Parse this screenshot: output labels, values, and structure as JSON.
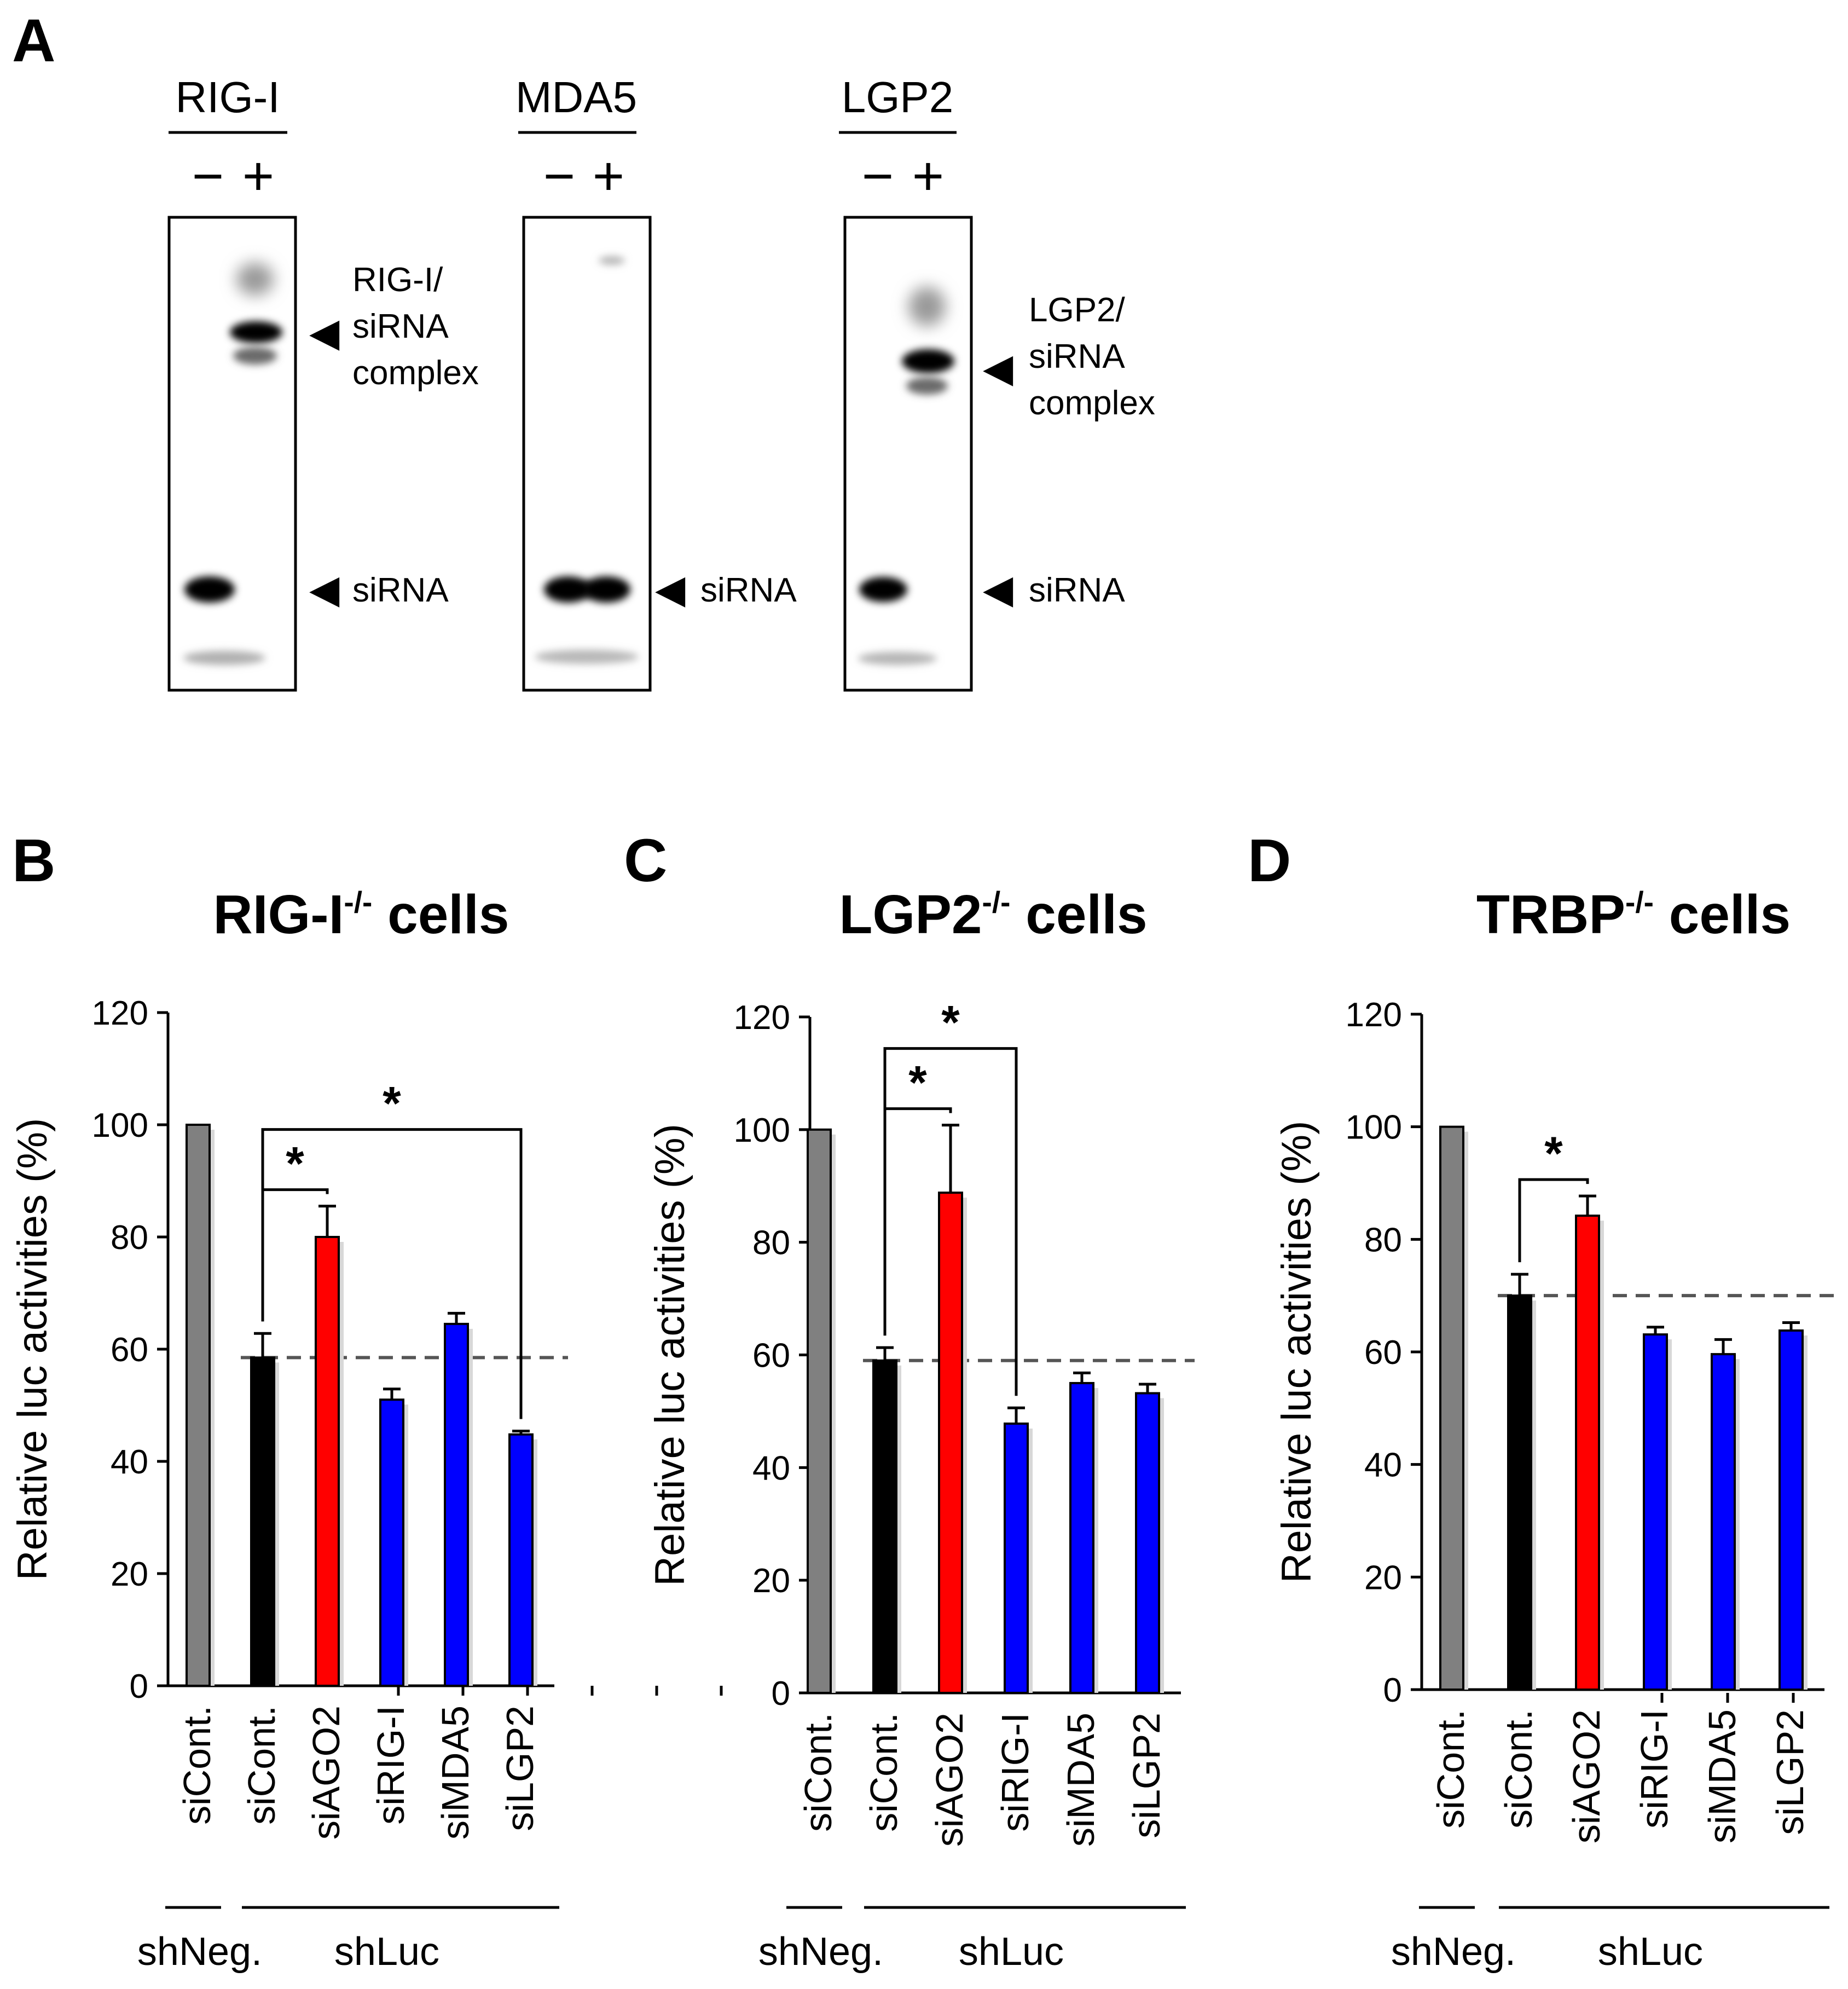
{
  "panelA": {
    "letter": "A",
    "gels": [
      {
        "protein": "RIG-I",
        "minus": "−",
        "plus": "+",
        "upper_label": [
          "RIG-I/",
          "siRNA",
          "complex"
        ],
        "lower_label": "siRNA",
        "bands": {
          "minus_siRNA": true,
          "plus_complex": true
        }
      },
      {
        "protein": "MDA5",
        "minus": "−",
        "plus": "+",
        "upper_label": [],
        "lower_label": "siRNA",
        "bands": {
          "minus_siRNA": true,
          "plus_siRNA": true
        }
      },
      {
        "protein": "LGP2",
        "minus": "−",
        "plus": "+",
        "upper_label": [
          "LGP2/",
          "siRNA",
          "complex"
        ],
        "lower_label": "siRNA",
        "bands": {
          "minus_siRNA": true,
          "plus_complex": true
        }
      }
    ]
  },
  "colors": {
    "gray": "#808080",
    "black": "#000000",
    "red": "#ff0000",
    "blue": "#0000ff"
  },
  "chart_data": [
    {
      "type": "bar",
      "letter": "B",
      "title": "RIG-I",
      "title_sup": "-/-",
      "title_suffix": "cells",
      "ylabel": "Relative luc activities (%)",
      "ylim": [
        0,
        120
      ],
      "yticks": [
        "0",
        "20",
        "40",
        "60",
        "80",
        "100",
        "120"
      ],
      "categories": [
        "siCont.",
        "siCont.",
        "siAGO2",
        "siRIG-I",
        "siMDA5",
        "siLGP2"
      ],
      "values": [
        100,
        58.5,
        80,
        51,
        64.5,
        44.8
      ],
      "errors": [
        0,
        4.3,
        5.5,
        1.9,
        1.9,
        0.6
      ],
      "bar_colors": [
        "gray",
        "black",
        "red",
        "blue",
        "blue",
        "blue"
      ],
      "reference_line": 58.5,
      "groups": [
        {
          "label": "shNeg.",
          "from": 0,
          "to": 0
        },
        {
          "label": "shLuc",
          "from": 1,
          "to": 5
        }
      ],
      "significance": [
        {
          "from": 1,
          "to": 2,
          "label": "*"
        },
        {
          "from": 1,
          "to": 5,
          "label": "*"
        }
      ]
    },
    {
      "type": "bar",
      "letter": "C",
      "title": "LGP2",
      "title_sup": "-/-",
      "title_suffix": "cells",
      "ylabel": "Relative luc activities (%)",
      "ylim": [
        0,
        120
      ],
      "yticks": [
        "0",
        "20",
        "40",
        "60",
        "80",
        "100",
        "120"
      ],
      "categories": [
        "siCont.",
        "siCont.",
        "siAGO2",
        "siRIG-I",
        "siMDA5",
        "siLGP2"
      ],
      "values": [
        100,
        59,
        88.8,
        47.8,
        55,
        53.2
      ],
      "errors": [
        0,
        2.3,
        12,
        2.8,
        1.8,
        1.6
      ],
      "bar_colors": [
        "gray",
        "black",
        "red",
        "blue",
        "blue",
        "blue"
      ],
      "reference_line": 59,
      "groups": [
        {
          "label": "shNeg.",
          "from": 0,
          "to": 0
        },
        {
          "label": "shLuc",
          "from": 1,
          "to": 5
        }
      ],
      "significance": [
        {
          "from": 1,
          "to": 2,
          "label": "*"
        },
        {
          "from": 1,
          "to": 3,
          "label": "*"
        }
      ]
    },
    {
      "type": "bar",
      "letter": "D",
      "title": "TRBP",
      "title_sup": "-/-",
      "title_suffix": "cells",
      "ylabel": "Relative luc activities (%)",
      "ylim": [
        0,
        120
      ],
      "yticks": [
        "0",
        "20",
        "40",
        "60",
        "80",
        "100",
        "120"
      ],
      "categories": [
        "siCont.",
        "siCont.",
        "siAGO2",
        "siRIG-I",
        "siMDA5",
        "siLGP2"
      ],
      "values": [
        100,
        70,
        84.2,
        63.1,
        59.6,
        63.8
      ],
      "errors": [
        0,
        3.8,
        3.5,
        1.3,
        2.6,
        1.4
      ],
      "bar_colors": [
        "gray",
        "black",
        "red",
        "blue",
        "blue",
        "blue"
      ],
      "reference_line": 70,
      "groups": [
        {
          "label": "shNeg.",
          "from": 0,
          "to": 0
        },
        {
          "label": "shLuc",
          "from": 1,
          "to": 5
        }
      ],
      "significance": [
        {
          "from": 1,
          "to": 2,
          "label": "*"
        }
      ]
    }
  ]
}
